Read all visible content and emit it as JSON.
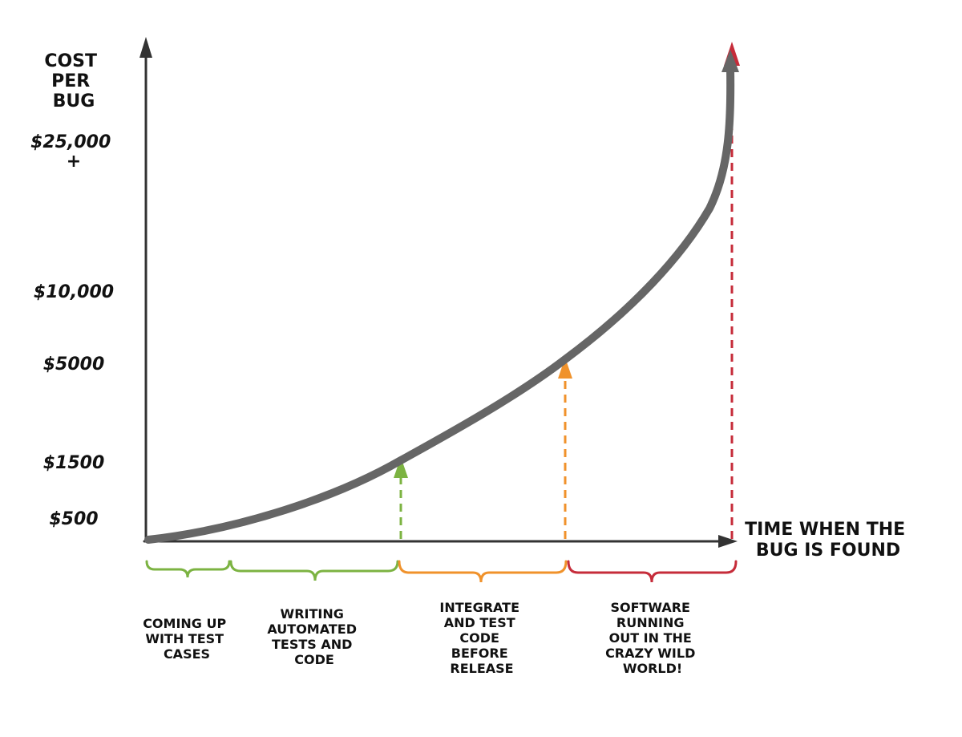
{
  "y_axis": {
    "title_lines": [
      "COST",
      "PER",
      "BUG"
    ],
    "ticks": [
      {
        "lines": [
          "$25,000",
          "+"
        ]
      },
      {
        "lines": [
          "$10,000"
        ]
      },
      {
        "lines": [
          "$5000"
        ]
      },
      {
        "lines": [
          "$1500"
        ]
      },
      {
        "lines": [
          "$500"
        ]
      }
    ]
  },
  "x_axis": {
    "title_lines": [
      "TIME WHEN THE",
      "BUG IS FOUND"
    ]
  },
  "phases": [
    {
      "lines": [
        "COMING UP",
        "WITH TEST",
        "CASES"
      ],
      "color": "#7cb342"
    },
    {
      "lines": [
        "WRITING",
        "AUTOMATED",
        "TESTS AND",
        "CODE"
      ],
      "color": "#7cb342"
    },
    {
      "lines": [
        "INTEGRATE",
        "AND TEST",
        "CODE",
        "BEFORE",
        "RELEASE"
      ],
      "color": "#f0922b"
    },
    {
      "lines": [
        "SOFTWARE",
        "RUNNING",
        "OUT IN THE",
        "CRAZY WILD",
        "WORLD!"
      ],
      "color": "#c62c3a"
    }
  ],
  "colors": {
    "axis": "#333333",
    "curve": "#666666",
    "green": "#7cb342",
    "orange": "#f0922b",
    "red": "#c62c3a"
  }
}
